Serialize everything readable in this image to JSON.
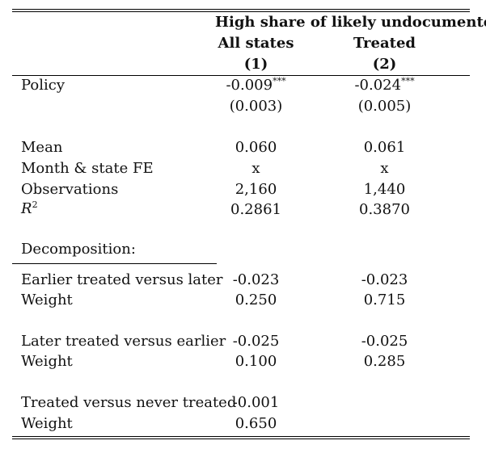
{
  "table": {
    "header": {
      "group_title": "High share of likely undocumented",
      "col1_title": "All states",
      "col2_title": "Treated",
      "col1_num": "(1)",
      "col2_num": "(2)"
    },
    "policy": {
      "label": "Policy",
      "col1": "-0.009",
      "col1_stars": "***",
      "col2": "-0.024",
      "col2_stars": "***",
      "col1_se": "(0.003)",
      "col2_se": "(0.005)"
    },
    "stats": [
      {
        "label": "Mean",
        "col1": "0.060",
        "col2": "0.061"
      },
      {
        "label": "Month & state FE",
        "col1": "x",
        "col2": "x"
      },
      {
        "label": "Observations",
        "col1": "2,160",
        "col2": "1,440"
      }
    ],
    "r2": {
      "label_base": "R",
      "label_sup": "2",
      "col1": "0.2861",
      "col2": "0.3870"
    },
    "decomposition": {
      "title": "Decomposition:",
      "blocks": [
        {
          "label": "Earlier treated versus later",
          "col1": "-0.023",
          "col2": "-0.023",
          "weight_label": "Weight",
          "w1": "0.250",
          "w2": "0.715"
        },
        {
          "label": "Later treated versus earlier",
          "col1": "-0.025",
          "col2": "-0.025",
          "weight_label": "Weight",
          "w1": "0.100",
          "w2": "0.285"
        },
        {
          "label": "Treated versus never treated",
          "col1": "-0.001",
          "col2": "",
          "weight_label": "Weight",
          "w1": "0.650",
          "w2": ""
        }
      ]
    }
  }
}
